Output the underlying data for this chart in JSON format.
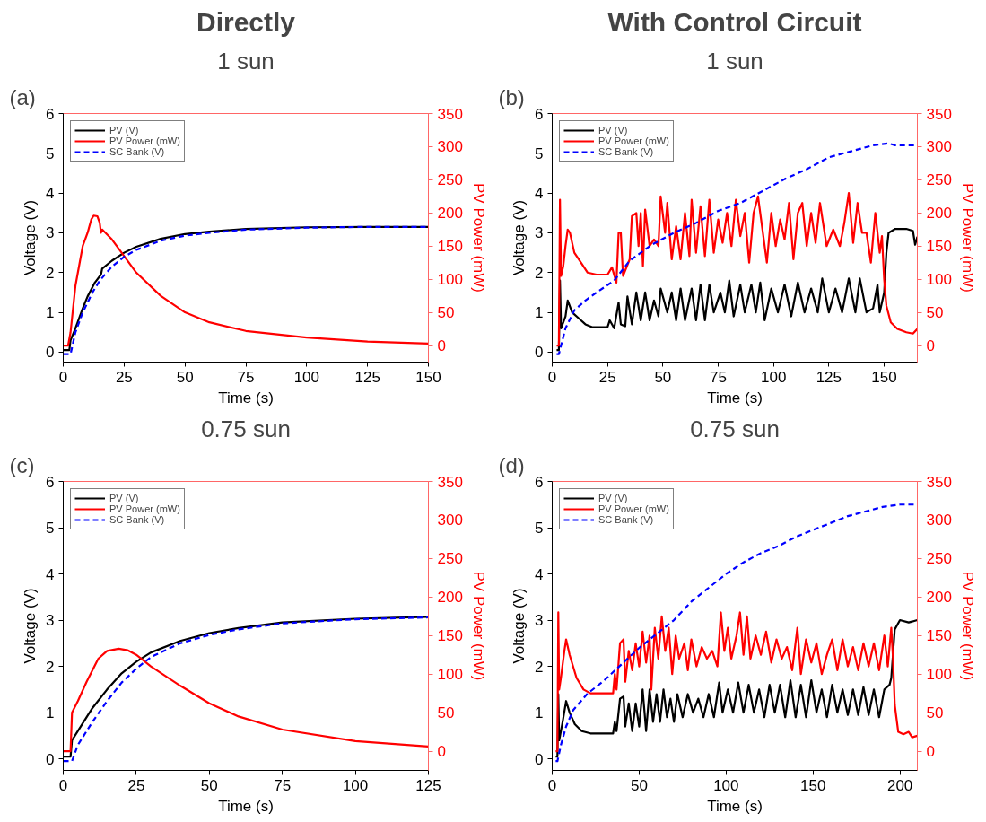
{
  "chart_data": [
    {
      "type": "line",
      "subtitle": "Directly",
      "title": "1 sun",
      "annotations": [
        "(a)"
      ],
      "xlabel": "Time (s)",
      "ylabel": "Voltage (V)",
      "y2label": "PV Power (mW)",
      "xlim": [
        0,
        150
      ],
      "xticks": [
        0,
        25,
        50,
        75,
        100,
        125,
        150
      ],
      "ylim": [
        -0.25,
        6
      ],
      "yticks": [
        0,
        1,
        2,
        3,
        4,
        5,
        6
      ],
      "y2lim": [
        -25,
        350
      ],
      "y2ticks": [
        0,
        50,
        100,
        150,
        200,
        250,
        300,
        350
      ],
      "legend": "top left",
      "grid": false,
      "series": [
        {
          "name": "PV (V)",
          "color": "#000000",
          "line_style": "solid",
          "x": [
            0,
            2.5,
            3,
            5,
            8,
            10,
            13,
            15.5,
            16,
            20,
            25,
            30,
            40,
            50,
            60,
            75,
            100,
            125,
            150
          ],
          "values": [
            0.05,
            0.05,
            0.3,
            0.6,
            1.1,
            1.4,
            1.75,
            1.95,
            2.1,
            2.3,
            2.5,
            2.65,
            2.85,
            2.97,
            3.03,
            3.1,
            3.14,
            3.15,
            3.15
          ]
        },
        {
          "name": "PV Power (mW)",
          "color": "#ff0000",
          "line_style": "solid",
          "axis": "y2",
          "x": [
            0,
            2,
            3,
            5,
            8,
            10,
            11.5,
            12.5,
            14,
            15,
            15.5,
            16,
            20,
            25,
            30,
            40,
            50,
            60,
            75,
            100,
            125,
            150
          ],
          "values": [
            0,
            0,
            20,
            90,
            150,
            170,
            190,
            196,
            195,
            185,
            170,
            175,
            160,
            135,
            110,
            75,
            50,
            35,
            22,
            12,
            6,
            3
          ]
        },
        {
          "name": "SC Bank (V)",
          "color": "#0000ff",
          "line_style": "dashed",
          "x": [
            0,
            3,
            5,
            8,
            12,
            15,
            20,
            25,
            30,
            40,
            50,
            60,
            75,
            100,
            125,
            150
          ],
          "values": [
            -0.05,
            -0.05,
            0.5,
            1.0,
            1.5,
            1.8,
            2.15,
            2.4,
            2.57,
            2.8,
            2.93,
            3.0,
            3.08,
            3.13,
            3.15,
            3.15
          ]
        }
      ]
    },
    {
      "type": "line",
      "subtitle": "With Control Circuit",
      "title": "1 sun",
      "annotations": [
        "(b)"
      ],
      "xlabel": "Time (s)",
      "ylabel": "Voltage (V)",
      "y2label": "PV Power (mW)",
      "xlim": [
        0,
        165
      ],
      "xticks": [
        0,
        25,
        50,
        75,
        100,
        125,
        150
      ],
      "ylim": [
        -0.25,
        6
      ],
      "yticks": [
        0,
        1,
        2,
        3,
        4,
        5,
        6
      ],
      "y2lim": [
        -25,
        350
      ],
      "y2ticks": [
        0,
        50,
        100,
        150,
        200,
        250,
        300,
        350
      ],
      "legend": "top left",
      "grid": false,
      "series": [
        {
          "name": "PV (V)",
          "color": "#000000",
          "line_style": "solid",
          "x": [
            2,
            3,
            3.5,
            4,
            6,
            7,
            9,
            12,
            15,
            18,
            25,
            26,
            28,
            30,
            31,
            33,
            34,
            36,
            38,
            40,
            42,
            44,
            46,
            48,
            49,
            52,
            54,
            56,
            58,
            60,
            63,
            65,
            67,
            69,
            71,
            73,
            76,
            78,
            80,
            82,
            85,
            87,
            90,
            92,
            94,
            96,
            99,
            102,
            105,
            108,
            111,
            114,
            117,
            120,
            122,
            125,
            128,
            131,
            134,
            137,
            139,
            142,
            145,
            147,
            148,
            150,
            151,
            152,
            155,
            160,
            163,
            164,
            165
          ],
          "values": [
            0.05,
            0.05,
            1.8,
            0.6,
            0.9,
            1.3,
            1.0,
            0.85,
            0.7,
            0.63,
            0.63,
            0.8,
            0.6,
            1.25,
            0.7,
            0.65,
            1.4,
            0.7,
            1.5,
            0.8,
            1.5,
            0.8,
            1.3,
            0.9,
            1.6,
            1.0,
            1.5,
            0.8,
            1.6,
            0.8,
            1.6,
            0.8,
            1.7,
            0.8,
            1.7,
            1.0,
            1.5,
            1.0,
            1.8,
            0.9,
            1.7,
            1.0,
            1.7,
            1.0,
            1.75,
            0.8,
            1.6,
            1.0,
            1.7,
            0.9,
            1.75,
            1.0,
            1.6,
            1.0,
            1.85,
            1.0,
            1.6,
            1.0,
            1.85,
            1.0,
            1.85,
            1.0,
            1.1,
            1.7,
            1.0,
            1.5,
            2.5,
            3.0,
            3.1,
            3.1,
            3.05,
            2.7,
            2.9
          ]
        },
        {
          "name": "PV Power (mW)",
          "color": "#ff0000",
          "line_style": "solid",
          "axis": "y2",
          "x": [
            2,
            3,
            3.5,
            4,
            5,
            6,
            7,
            8,
            10,
            13,
            16,
            20,
            25,
            27,
            29,
            30,
            31,
            32,
            35,
            36,
            38,
            39,
            40,
            41,
            42,
            44,
            46,
            48,
            49,
            51,
            52,
            54,
            56,
            58,
            60,
            62,
            63,
            65,
            67,
            69,
            71,
            73,
            75,
            77,
            79,
            81,
            83,
            85,
            87,
            89,
            91,
            93,
            95,
            97,
            99,
            101,
            103,
            105,
            107,
            109,
            111,
            113,
            115,
            117,
            119,
            121,
            124,
            127,
            130,
            132,
            134,
            136,
            138,
            140,
            142,
            144,
            146,
            148,
            149,
            150,
            151,
            153,
            156,
            160,
            163,
            165
          ],
          "values": [
            0,
            0,
            220,
            105,
            120,
            150,
            175,
            170,
            140,
            125,
            110,
            107,
            107,
            118,
            95,
            170,
            170,
            105,
            130,
            195,
            200,
            150,
            200,
            120,
            205,
            150,
            160,
            150,
            225,
            170,
            215,
            130,
            180,
            130,
            200,
            135,
            220,
            140,
            210,
            135,
            220,
            140,
            190,
            155,
            200,
            150,
            220,
            165,
            200,
            125,
            200,
            225,
            175,
            125,
            200,
            150,
            190,
            160,
            215,
            130,
            200,
            215,
            150,
            200,
            155,
            215,
            150,
            175,
            150,
            185,
            230,
            155,
            215,
            170,
            170,
            125,
            200,
            140,
            165,
            100,
            60,
            35,
            25,
            20,
            18,
            25
          ]
        },
        {
          "name": "SC Bank (V)",
          "color": "#0000ff",
          "line_style": "dashed",
          "x": [
            2,
            3,
            6,
            10,
            15,
            20,
            28,
            35,
            45,
            55,
            65,
            75,
            85,
            95,
            105,
            115,
            125,
            135,
            145,
            152,
            155,
            160,
            165
          ],
          "values": [
            -0.05,
            -0.05,
            0.6,
            1.05,
            1.3,
            1.5,
            1.8,
            2.3,
            2.7,
            3.0,
            3.25,
            3.55,
            3.75,
            4.05,
            4.35,
            4.6,
            4.9,
            5.05,
            5.2,
            5.25,
            5.2,
            5.2,
            5.2
          ]
        }
      ]
    },
    {
      "type": "line",
      "title": "0.75 sun",
      "annotations": [
        "(c)"
      ],
      "xlabel": "Time (s)",
      "ylabel": "Voltage (V)",
      "y2label": "PV Power (mW)",
      "xlim": [
        0,
        125
      ],
      "xticks": [
        0,
        25,
        50,
        75,
        100,
        125
      ],
      "ylim": [
        -0.25,
        6
      ],
      "yticks": [
        0,
        1,
        2,
        3,
        4,
        5,
        6
      ],
      "y2lim": [
        -25,
        350
      ],
      "y2ticks": [
        0,
        50,
        100,
        150,
        200,
        250,
        300,
        350
      ],
      "legend": "top left",
      "grid": false,
      "series": [
        {
          "name": "PV (V)",
          "color": "#000000",
          "line_style": "solid",
          "x": [
            0,
            2.5,
            3,
            5,
            10,
            15,
            20,
            25,
            30,
            40,
            50,
            60,
            75,
            100,
            125
          ],
          "values": [
            0.05,
            0.05,
            0.4,
            0.6,
            1.1,
            1.5,
            1.85,
            2.1,
            2.3,
            2.55,
            2.72,
            2.83,
            2.95,
            3.03,
            3.07
          ]
        },
        {
          "name": "PV Power (mW)",
          "color": "#ff0000",
          "line_style": "solid",
          "axis": "y2",
          "x": [
            0,
            2.5,
            3,
            5,
            8,
            12,
            15,
            19,
            22,
            25,
            30,
            40,
            50,
            60,
            75,
            100,
            125
          ],
          "values": [
            0,
            0,
            50,
            65,
            90,
            120,
            130,
            133,
            131,
            125,
            110,
            85,
            62,
            45,
            28,
            13,
            6
          ]
        },
        {
          "name": "SC Bank (V)",
          "color": "#0000ff",
          "line_style": "dashed",
          "x": [
            0,
            3,
            5,
            10,
            15,
            20,
            25,
            30,
            40,
            50,
            60,
            75,
            100,
            125
          ],
          "values": [
            -0.05,
            -0.05,
            0.3,
            0.8,
            1.25,
            1.65,
            1.95,
            2.2,
            2.5,
            2.68,
            2.8,
            2.93,
            3.02,
            3.06
          ]
        }
      ]
    },
    {
      "type": "line",
      "title": "0.75 sun",
      "annotations": [
        "(d)"
      ],
      "xlabel": "Time (s)",
      "ylabel": "Voltage (V)",
      "y2label": "PV Power (mW)",
      "xlim": [
        0,
        210
      ],
      "xticks": [
        0,
        50,
        100,
        150,
        200
      ],
      "ylim": [
        -0.25,
        6
      ],
      "yticks": [
        0,
        1,
        2,
        3,
        4,
        5,
        6
      ],
      "y2lim": [
        -25,
        350
      ],
      "y2ticks": [
        0,
        50,
        100,
        150,
        200,
        250,
        300,
        350
      ],
      "legend": "top left",
      "grid": false,
      "series": [
        {
          "name": "PV (V)",
          "color": "#000000",
          "line_style": "solid",
          "x": [
            2,
            3,
            3.5,
            4,
            6,
            8,
            10,
            13,
            17,
            22,
            35,
            36,
            37,
            39,
            41,
            42,
            44,
            46,
            48,
            50,
            52,
            54,
            56,
            58,
            60,
            62,
            64,
            66,
            68,
            70,
            72,
            75,
            78,
            81,
            84,
            87,
            90,
            93,
            96,
            98,
            101,
            104,
            107,
            110,
            113,
            116,
            119,
            122,
            125,
            128,
            131,
            134,
            137,
            140,
            143,
            146,
            149,
            152,
            155,
            158,
            161,
            164,
            167,
            170,
            173,
            176,
            179,
            182,
            185,
            188,
            191,
            194,
            195,
            197,
            200,
            205,
            210
          ],
          "values": [
            0.05,
            0.05,
            1.4,
            0.4,
            0.8,
            1.25,
            1.0,
            0.75,
            0.6,
            0.55,
            0.55,
            0.8,
            0.6,
            1.3,
            1.35,
            0.7,
            1.2,
            0.6,
            1.2,
            0.7,
            1.5,
            0.6,
            1.5,
            0.8,
            1.4,
            0.8,
            1.5,
            0.9,
            1.3,
            0.8,
            1.4,
            0.9,
            1.4,
            1.0,
            1.3,
            0.9,
            1.4,
            0.9,
            1.65,
            1.0,
            1.5,
            1.0,
            1.65,
            1.0,
            1.6,
            1.0,
            1.5,
            0.9,
            1.6,
            1.0,
            1.6,
            0.9,
            1.7,
            0.9,
            1.6,
            0.9,
            1.7,
            1.0,
            1.5,
            0.9,
            1.6,
            1.0,
            1.5,
            0.95,
            1.5,
            0.95,
            1.55,
            0.95,
            1.5,
            0.9,
            1.5,
            1.6,
            1.75,
            2.8,
            3.0,
            2.95,
            3.0
          ]
        },
        {
          "name": "PV Power (mW)",
          "color": "#ff0000",
          "line_style": "solid",
          "axis": "y2",
          "x": [
            2,
            3,
            3.5,
            4,
            5,
            7,
            8,
            10,
            14,
            18,
            22,
            35,
            36,
            37,
            39,
            41,
            42,
            44,
            46,
            48,
            50,
            52,
            54,
            56,
            57,
            59,
            61,
            63,
            65,
            67,
            69,
            71,
            73,
            76,
            78,
            80,
            83,
            86,
            89,
            92,
            95,
            97,
            99,
            101,
            103,
            106,
            108,
            110,
            112,
            114,
            117,
            120,
            123,
            126,
            129,
            132,
            135,
            138,
            141,
            143,
            146,
            149,
            152,
            155,
            158,
            161,
            164,
            167,
            170,
            173,
            176,
            179,
            182,
            185,
            188,
            191,
            193,
            195,
            196,
            197,
            199,
            202,
            205,
            207,
            210
          ],
          "values": [
            0,
            0,
            180,
            80,
            95,
            130,
            145,
            125,
            95,
            80,
            75,
            75,
            100,
            80,
            140,
            145,
            90,
            130,
            105,
            140,
            110,
            155,
            115,
            150,
            80,
            160,
            120,
            175,
            130,
            160,
            100,
            150,
            120,
            140,
            105,
            145,
            110,
            135,
            120,
            130,
            110,
            180,
            130,
            160,
            120,
            150,
            180,
            125,
            175,
            120,
            150,
            125,
            155,
            115,
            145,
            120,
            135,
            105,
            160,
            100,
            145,
            115,
            140,
            100,
            125,
            145,
            105,
            145,
            110,
            135,
            105,
            140,
            110,
            140,
            105,
            150,
            110,
            160,
            120,
            60,
            25,
            22,
            25,
            18,
            20
          ]
        },
        {
          "name": "SC Bank (V)",
          "color": "#0000ff",
          "line_style": "dashed",
          "x": [
            2,
            3,
            5,
            8,
            12,
            20,
            30,
            40,
            50,
            60,
            70,
            80,
            90,
            100,
            110,
            120,
            130,
            140,
            150,
            160,
            170,
            180,
            190,
            200,
            210
          ],
          "values": [
            -0.05,
            -0.05,
            0.3,
            0.7,
            1.05,
            1.4,
            1.7,
            2.05,
            2.4,
            2.7,
            3.0,
            3.4,
            3.7,
            4.0,
            4.25,
            4.45,
            4.6,
            4.8,
            4.95,
            5.1,
            5.25,
            5.35,
            5.45,
            5.5,
            5.5
          ]
        }
      ]
    }
  ]
}
